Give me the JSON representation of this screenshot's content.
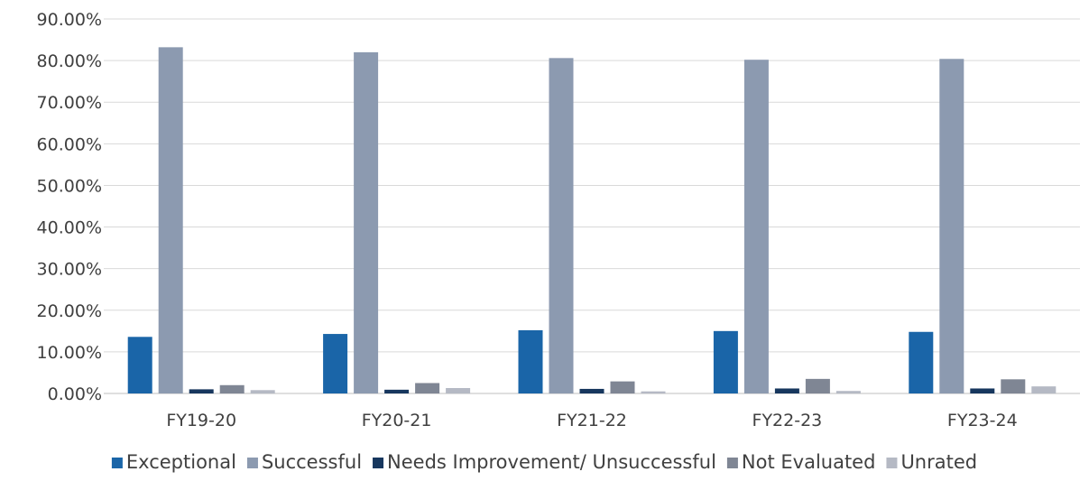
{
  "chart_data": {
    "type": "bar",
    "categories": [
      "FY19-20",
      "FY20-21",
      "FY21-22",
      "FY22-23",
      "FY23-24"
    ],
    "series": [
      {
        "name": "Exceptional",
        "values": [
          13.6,
          14.3,
          15.2,
          15.0,
          14.8
        ],
        "color": "#1A65A8"
      },
      {
        "name": "Successful",
        "values": [
          83.2,
          82.0,
          80.6,
          80.2,
          80.4
        ],
        "color": "#8C9AB0"
      },
      {
        "name": "Needs Improvement/ Unsuccessful",
        "values": [
          1.0,
          0.9,
          1.1,
          1.2,
          1.2
        ],
        "color": "#17375E"
      },
      {
        "name": "Not Evaluated",
        "values": [
          2.0,
          2.5,
          2.9,
          3.5,
          3.4
        ],
        "color": "#7F8694"
      },
      {
        "name": "Unrated",
        "values": [
          0.8,
          1.3,
          0.5,
          0.6,
          1.7
        ],
        "color": "#B5B9C4"
      }
    ],
    "ylim": [
      0,
      90
    ],
    "yticks": [
      0,
      10,
      20,
      30,
      40,
      50,
      60,
      70,
      80,
      90
    ],
    "ytick_labels": [
      "0.00%",
      "10.00%",
      "20.00%",
      "30.00%",
      "40.00%",
      "50.00%",
      "60.00%",
      "70.00%",
      "80.00%",
      "90.00%"
    ],
    "grid": true,
    "legend_position": "bottom",
    "title": "",
    "xlabel": "",
    "ylabel": ""
  }
}
